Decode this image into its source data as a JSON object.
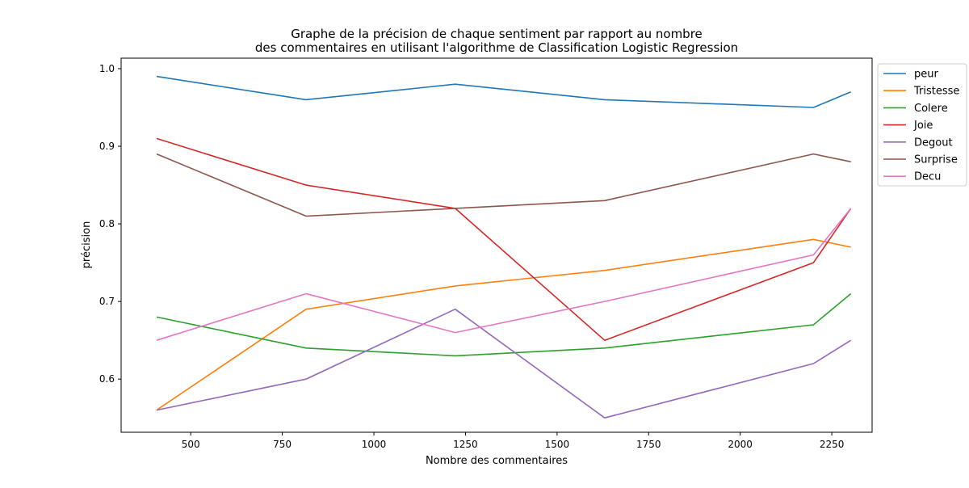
{
  "chart_data": {
    "type": "line",
    "title_lines": [
      "Graphe de la précision de chaque sentiment par rapport au nombre",
      "des commentaires en utilisant l'algorithme de Classification Logistic Regression"
    ],
    "xlabel": "Nombre des commentaires",
    "ylabel": "précision",
    "xlim": [
      310,
      2360
    ],
    "ylim": [
      0.5315,
      1.0135
    ],
    "xticks": [
      500,
      750,
      1000,
      1250,
      1500,
      1750,
      2000,
      2250
    ],
    "yticks": [
      0.6,
      0.7,
      0.8,
      0.9,
      1.0
    ],
    "xtick_labels": [
      "500",
      "750",
      "1000",
      "1250",
      "1500",
      "1750",
      "2000",
      "2250"
    ],
    "ytick_labels": [
      "0.6",
      "0.7",
      "0.8",
      "0.9",
      "1.0"
    ],
    "x": [
      407,
      815,
      1222,
      1630,
      2200,
      2302
    ],
    "legend_position": "upper right, outside plot",
    "grid": false,
    "series": [
      {
        "name": "peur",
        "color": "#1f77b4",
        "values": [
          0.99,
          0.96,
          0.98,
          0.96,
          0.95,
          0.97
        ]
      },
      {
        "name": "Tristesse",
        "color": "#ff7f0e",
        "values": [
          0.56,
          0.69,
          0.72,
          0.74,
          0.78,
          0.77
        ]
      },
      {
        "name": "Colere",
        "color": "#2ca02c",
        "values": [
          0.68,
          0.64,
          0.63,
          0.64,
          0.67,
          0.71
        ]
      },
      {
        "name": "Joie",
        "color": "#d62728",
        "values": [
          0.91,
          0.85,
          0.82,
          0.65,
          0.75,
          0.82
        ]
      },
      {
        "name": "Degout",
        "color": "#9467bd",
        "values": [
          0.56,
          0.6,
          0.69,
          0.55,
          0.62,
          0.65
        ]
      },
      {
        "name": "Surprise",
        "color": "#8c564b",
        "values": [
          0.89,
          0.81,
          0.82,
          0.83,
          0.89,
          0.88
        ]
      },
      {
        "name": "Decu",
        "color": "#e377c2",
        "values": [
          0.65,
          0.71,
          0.66,
          0.7,
          0.76,
          0.82
        ]
      }
    ]
  }
}
